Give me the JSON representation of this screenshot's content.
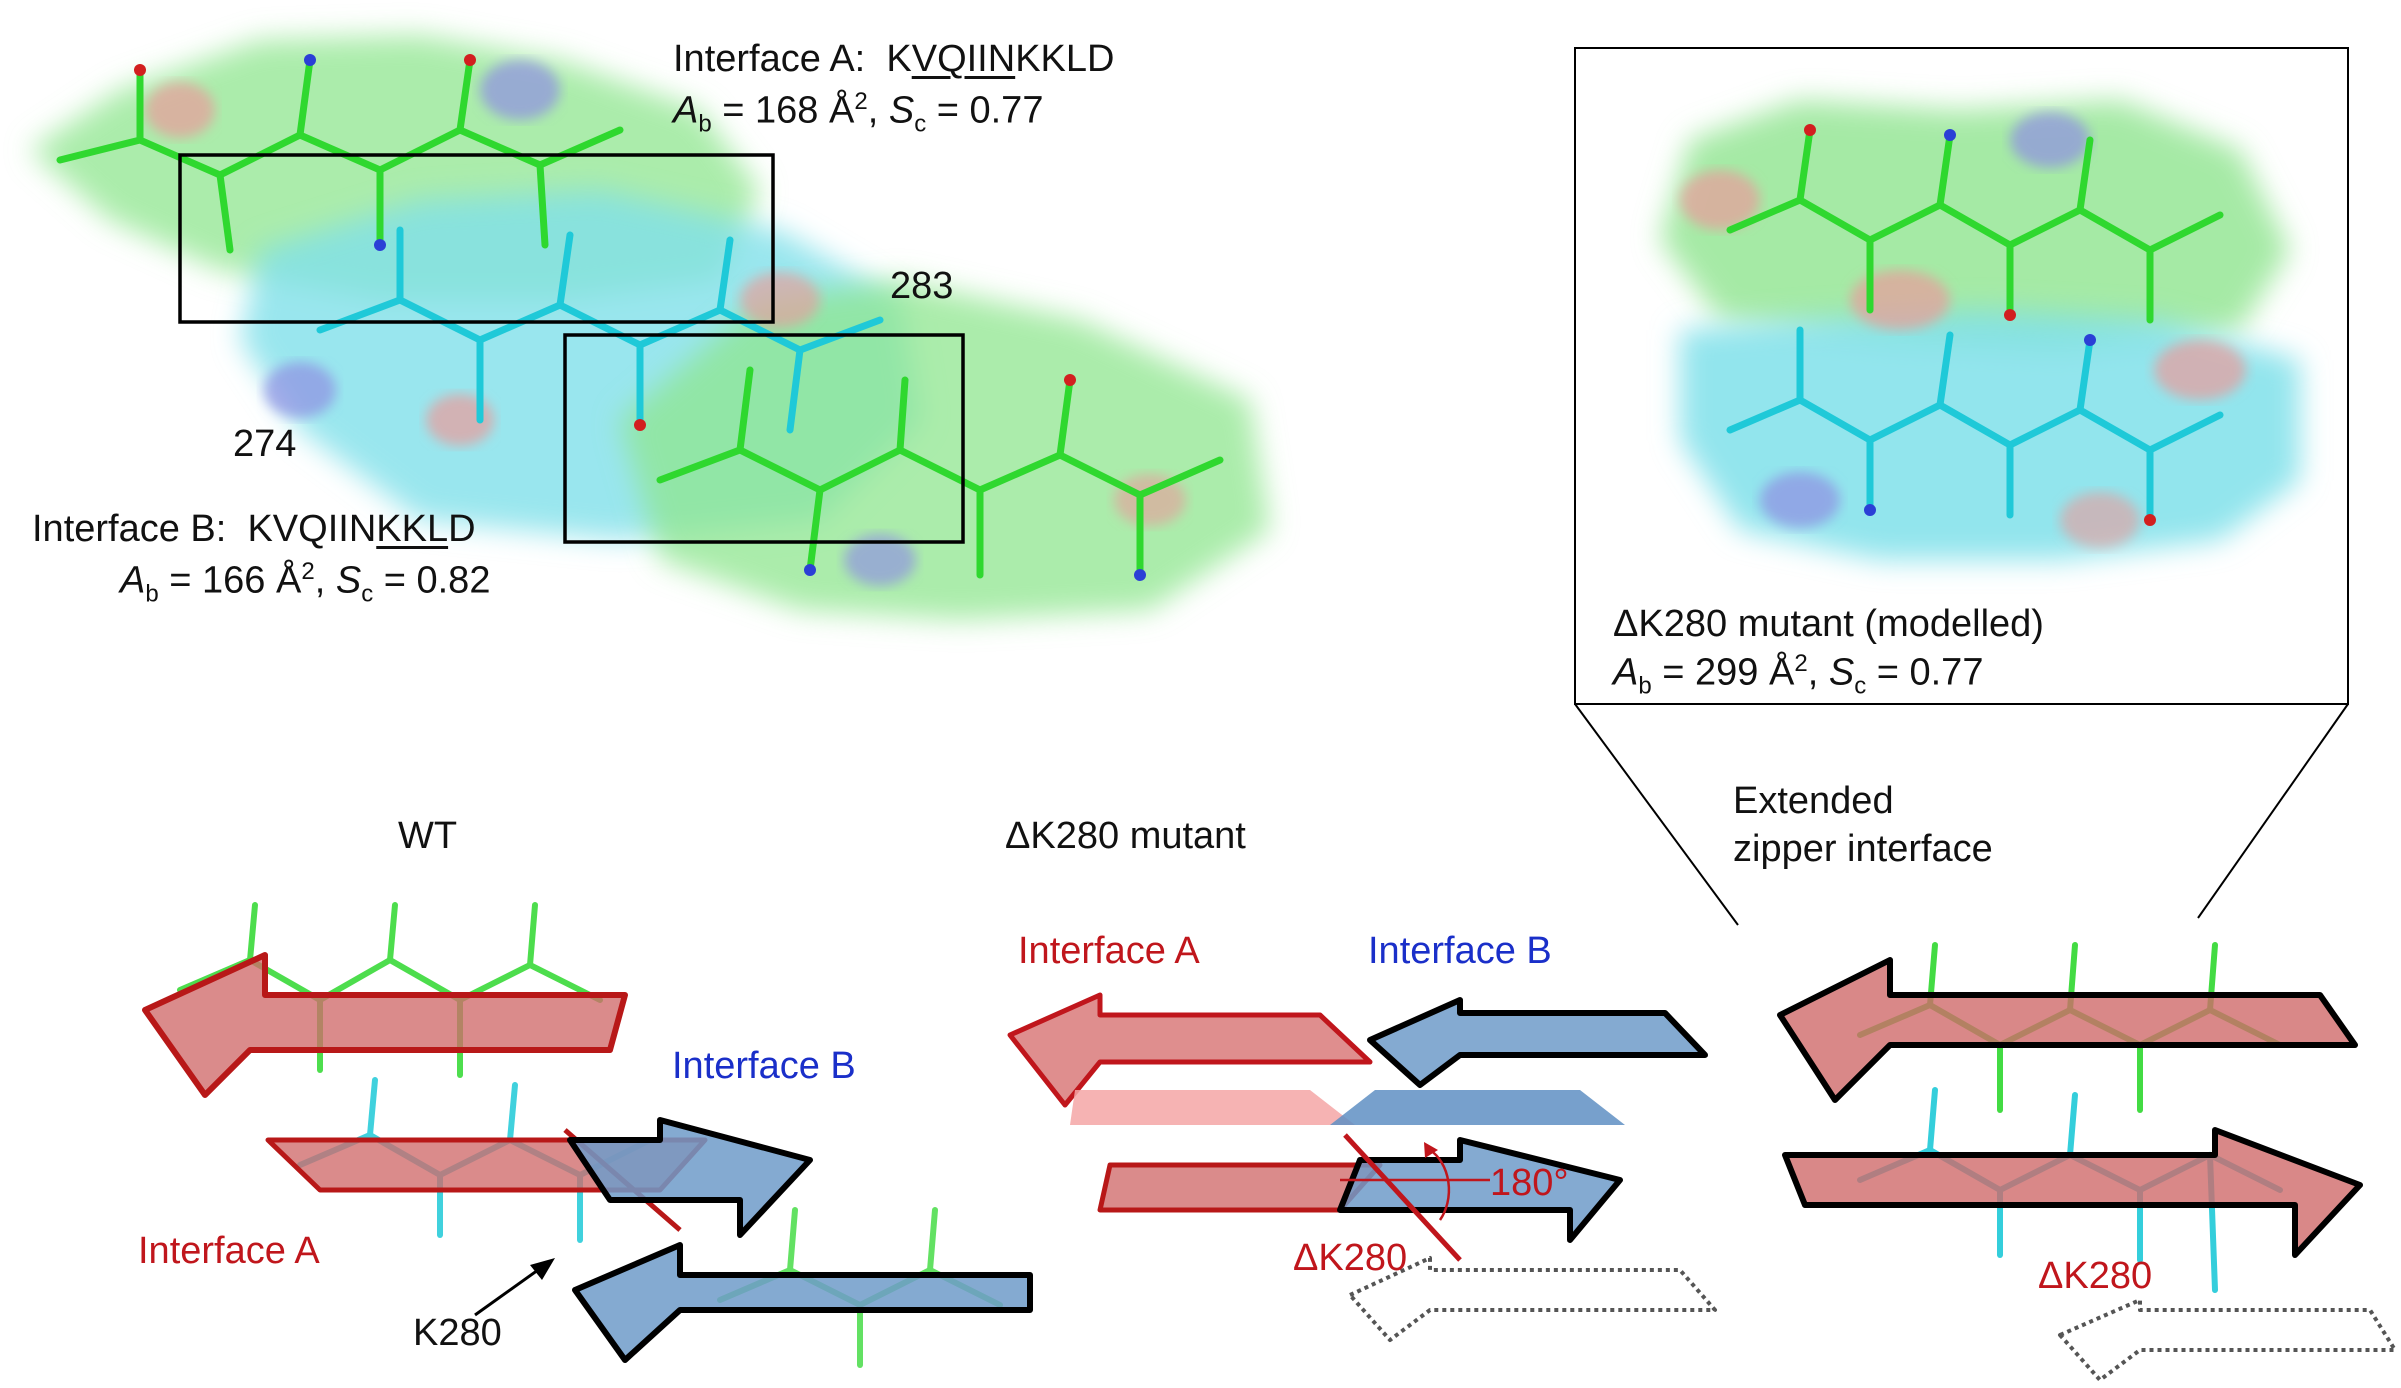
{
  "top_panel": {
    "interface_a": {
      "label": "Interface A:",
      "seq_pre": "K",
      "seq_underlined": "VQIIN",
      "seq_post": "KKLD",
      "ab_sym": "A",
      "ab_sub": "b",
      "ab_value": " = 168 Å",
      "ab_sup": "2",
      "sc_pre": ", ",
      "sc_sym": "S",
      "sc_sub": "c",
      "sc_value": " = 0.77"
    },
    "interface_b": {
      "label": "Interface B:",
      "seq_pre": "KVQIIN",
      "seq_underlined": "KKL",
      "seq_post": "D",
      "ab_sym": "A",
      "ab_sub": "b",
      "ab_value": " = 166 Å",
      "ab_sup": "2",
      "sc_pre": ", ",
      "sc_sym": "S",
      "sc_sub": "c",
      "sc_value": " = 0.82"
    },
    "residue_283": "283",
    "residue_274": "274"
  },
  "inset": {
    "title": "ΔK280 mutant (modelled)",
    "ab_sym": "A",
    "ab_sub": "b",
    "ab_value": " = 299 Å",
    "ab_sup": "2",
    "sc_pre": ", ",
    "sc_sym": "S",
    "sc_sub": "c",
    "sc_value": " = 0.77"
  },
  "bottom": {
    "wt_title": "WT",
    "wt_interface_b": "Interface B",
    "wt_interface_a": "Interface A",
    "wt_k280": "K280",
    "mut_title": "ΔK280 mutant",
    "mut_interface_a": "Interface A",
    "mut_interface_b": "Interface B",
    "mut_rotation": "180°",
    "mut_dk280": "ΔK280",
    "ext_title_line1": "Extended",
    "ext_title_line2": "zipper interface",
    "ext_dk280": "ΔK280"
  },
  "colors": {
    "carbon_a": "#3ee03e",
    "carbon_b": "#2ad7e0",
    "strand_red": "#cf6a6a",
    "strand_blue": "#6f9bc9",
    "text_red": "#c0161c",
    "text_blue": "#1a2fc9"
  }
}
